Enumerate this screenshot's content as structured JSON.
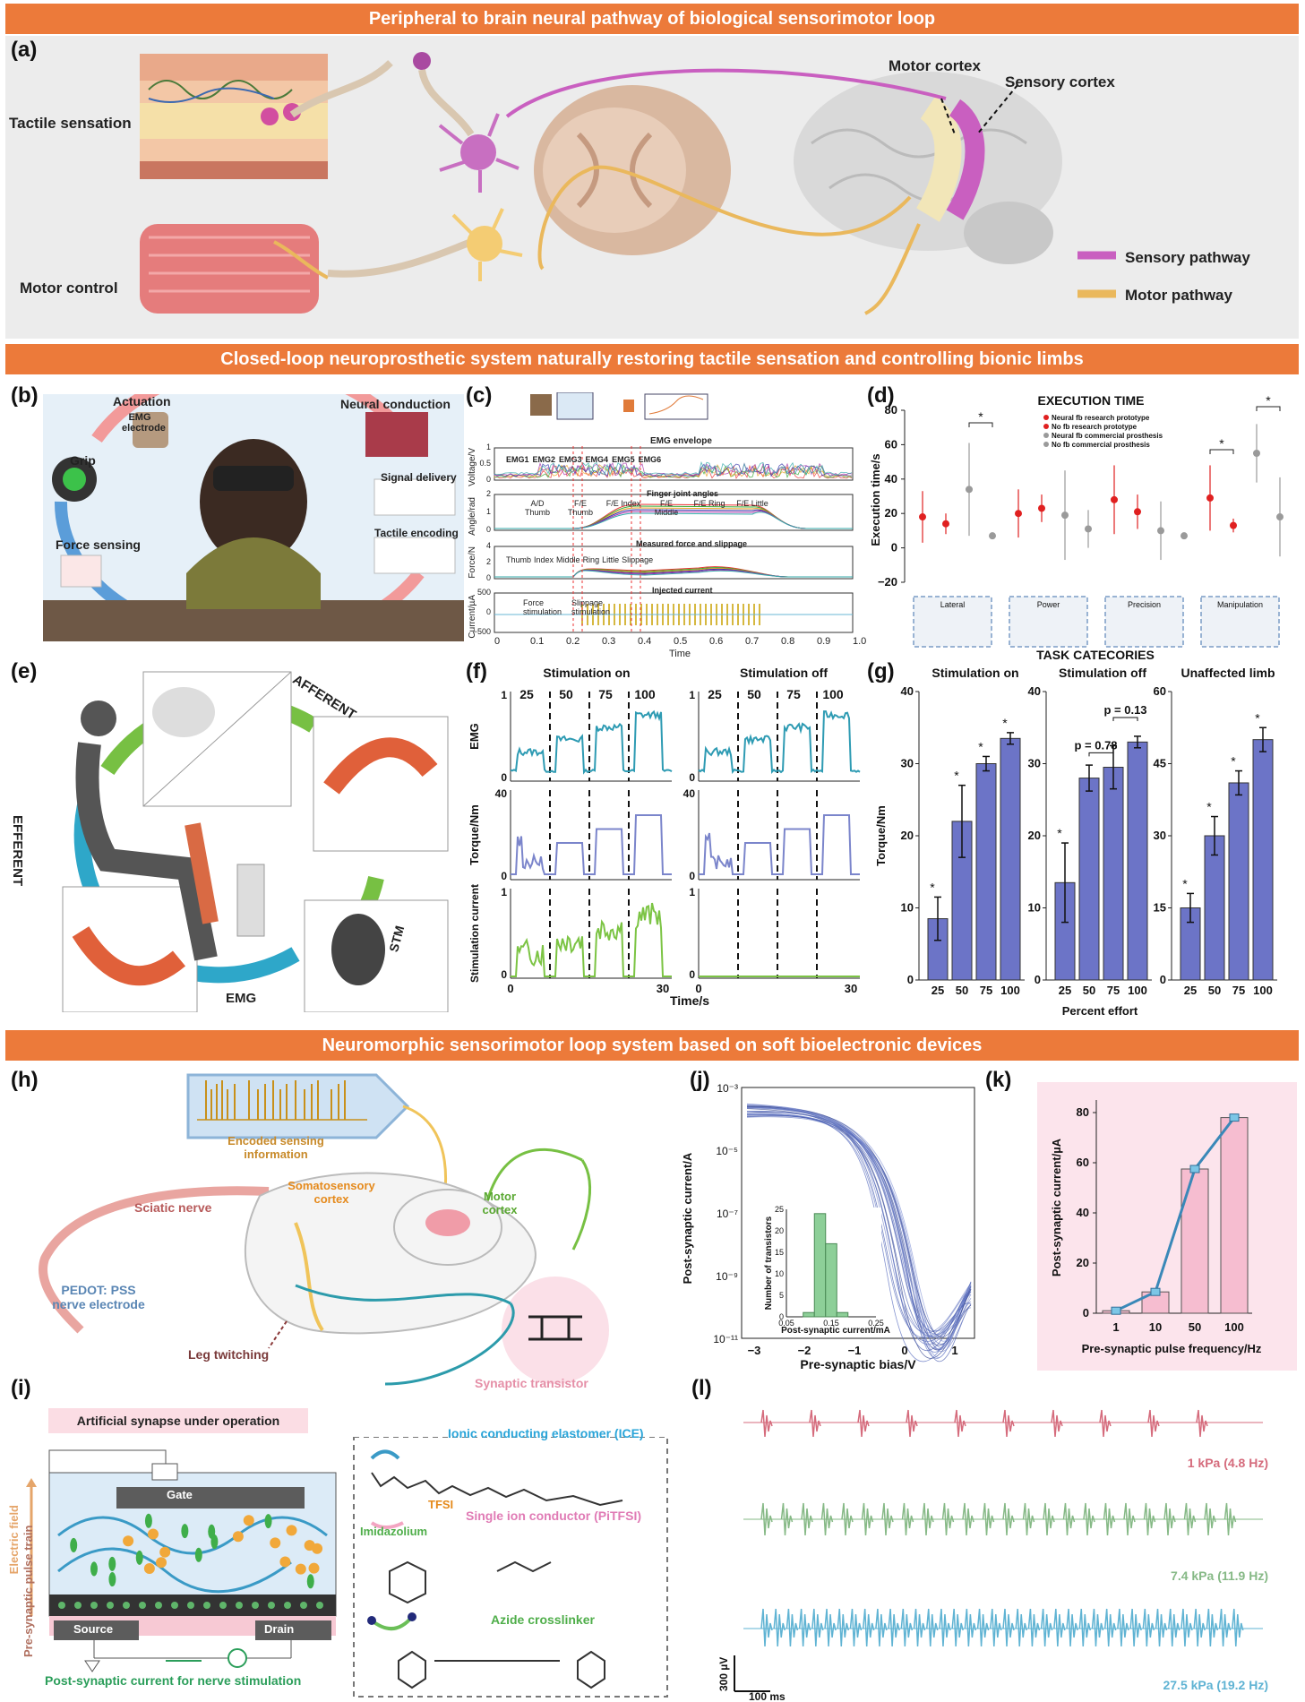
{
  "banners": {
    "top": "Peripheral to brain neural pathway of biological sensorimotor loop",
    "middle": "Closed-loop neuroprosthetic system naturally restoring tactile sensation and controlling bionic limbs",
    "bottom": "Neuromorphic sensorimotor loop system based on soft bioelectronic devices"
  },
  "panel_labels": {
    "a": "(a)",
    "b": "(b)",
    "c": "(c)",
    "d": "(d)",
    "e": "(e)",
    "f": "(f)",
    "g": "(g)",
    "h": "(h)",
    "i": "(i)",
    "j": "(j)",
    "k": "(k)",
    "l": "(l)"
  },
  "panel_a": {
    "tactile": "Tactile sensation",
    "motor_control": "Motor control",
    "motor_cortex": "Motor cortex",
    "sensory_cortex": "Sensory cortex",
    "legend_sensory": "Sensory pathway",
    "legend_motor": "Motor pathway",
    "colors": {
      "sensory": "#c95fc0",
      "motor": "#eab85c"
    }
  },
  "panel_b": {
    "actuation": "Actuation",
    "emg_electrode": "EMG electrode",
    "grip": "Grip",
    "force_sensing": "Force sensing",
    "neural_conduction": "Neural conduction",
    "signal_delivery": "Signal delivery",
    "tactile_encoding": "Tactile encoding"
  },
  "panel_c": {
    "emg_envelope": "EMG envelope",
    "ylabels": [
      "Voltage/V",
      "Angle/rad",
      "Force/N",
      "Current/µA"
    ],
    "emg_channels": [
      "EMG1",
      "EMG2",
      "EMG3",
      "EMG4",
      "EMG5",
      "EMG6"
    ],
    "finger_joint": "Finger joint angles",
    "angle_legend": [
      "A/D Thumb",
      "F/E Thumb",
      "F/E Index",
      "F/E Middle",
      "F/E Ring",
      "F/E Little"
    ],
    "measured": "Measured force and slippage",
    "force_legend": [
      "Thumb",
      "Index",
      "Middle",
      "Ring",
      "Little",
      "Slippage"
    ],
    "injected": "Injected current",
    "force_stim": "Force stimulation",
    "slip_stim": "Slippage stimulation",
    "xlabel": "Time",
    "xticks": [
      "0",
      "0.1",
      "0.2",
      "0.3",
      "0.4",
      "0.5",
      "0.6",
      "0.7",
      "0.8",
      "0.9",
      "1.0"
    ],
    "yticks_voltage": [
      "0",
      "0.5",
      "1"
    ],
    "yticks_angle": [
      "0",
      "1",
      "2"
    ],
    "yticks_force": [
      "0",
      "2",
      "4"
    ],
    "yticks_current": [
      "−500",
      "0",
      "500"
    ]
  },
  "chart_data": [
    {
      "id": "d",
      "type": "scatter",
      "title": "EXECUTION TIME",
      "ylabel": "Execution time/s",
      "xlabel": "TASK CATECORIES",
      "ylim": [
        -20,
        80
      ],
      "yticks": [
        -20,
        0,
        20,
        40,
        60,
        80
      ],
      "categories": [
        "Lateral",
        "Power",
        "Precision",
        "Manipulation"
      ],
      "series": [
        {
          "name": "Neural fb research prototype",
          "color": "#e02020",
          "values": [
            18,
            20,
            28,
            29
          ],
          "err": [
            15,
            14,
            20,
            19
          ]
        },
        {
          "name": "No fb research prototype",
          "color": "#e02020",
          "values": [
            14,
            23,
            21,
            13
          ],
          "err": [
            6,
            8,
            10,
            4
          ]
        },
        {
          "name": "Neural fb commercial prosthesis",
          "color": "#9a9a9a",
          "values": [
            34,
            19,
            10,
            55
          ],
          "err": [
            27,
            26,
            17,
            17
          ]
        },
        {
          "name": "No fb commercial prosthesis",
          "color": "#9a9a9a",
          "values": [
            7,
            11,
            7,
            18
          ],
          "err": [
            2,
            11,
            2,
            23
          ]
        }
      ],
      "significance": "*"
    },
    {
      "id": "g",
      "type": "bar",
      "xlabel": "Percent effort",
      "ylabel": "Torque/Nm",
      "categories": [
        "25",
        "50",
        "75",
        "100"
      ],
      "subplots": [
        {
          "title": "Stimulation on",
          "ylim": [
            0,
            40
          ],
          "yticks": [
            0,
            10,
            20,
            30,
            40
          ],
          "values": [
            8.5,
            22,
            30,
            33.5
          ],
          "err": [
            3,
            5,
            1,
            0.8
          ]
        },
        {
          "title": "Stimulation off",
          "ylim": [
            0,
            40
          ],
          "yticks": [
            0,
            10,
            20,
            30,
            40
          ],
          "values": [
            13.5,
            28,
            29.5,
            33
          ],
          "err": [
            5.5,
            1.8,
            3,
            0.8
          ],
          "annotations": [
            "p = 0.78",
            "p = 0.13"
          ]
        },
        {
          "title": "Unaffected limb",
          "ylim": [
            0,
            60
          ],
          "yticks": [
            0,
            15,
            30,
            45,
            60
          ],
          "values": [
            15,
            30,
            41,
            50
          ],
          "err": [
            3,
            4,
            2.5,
            2.5
          ]
        }
      ],
      "bar_color": "#6c74c7",
      "significance": "*"
    },
    {
      "id": "k",
      "type": "bar",
      "xlabel": "Pre-synaptic pulse frequency/Hz",
      "ylabel": "Post-synaptic current/µA",
      "categories": [
        "1",
        "10",
        "50",
        "100"
      ],
      "values": [
        1,
        8.5,
        57.5,
        78
      ],
      "ylim": [
        0,
        85
      ],
      "yticks": [
        0,
        20,
        40,
        60,
        80
      ]
    },
    {
      "id": "j_inset",
      "type": "bar",
      "xlabel": "Post-synaptic current/mA",
      "ylabel": "Number of transistors",
      "x": [
        0.1,
        0.125,
        0.15,
        0.175
      ],
      "values": [
        1,
        24,
        17,
        1
      ],
      "xlim": [
        0.05,
        0.25
      ],
      "xticks": [
        0.05,
        0.15,
        0.25
      ],
      "ylim": [
        0,
        25
      ],
      "yticks": [
        0,
        5,
        10,
        15,
        20,
        25
      ]
    }
  ],
  "panel_e": {
    "afferent": "AFFERENT",
    "efferent": "EFFERENT",
    "emg": "EMG",
    "stm": "STM"
  },
  "panel_f": {
    "titles": [
      "Stimulation on",
      "Stimulation off"
    ],
    "levels": [
      "25",
      "50",
      "75",
      "100"
    ],
    "ylabels": [
      "EMG",
      "Torque/Nm",
      "Stimulation current"
    ],
    "xlabel": "Time/s",
    "xticks": [
      "0",
      "30"
    ],
    "emg_ticks": [
      "0",
      "1"
    ],
    "torque_ticks": [
      "0",
      "40"
    ],
    "stim_ticks": [
      "0",
      "1"
    ]
  },
  "panel_h": {
    "encoded": "Encoded sensing information",
    "somato": "Somatosensory cortex",
    "motor_cortex": "Motor cortex",
    "sciatic": "Sciatic nerve",
    "pedot": "PEDOT: PSS nerve electrode",
    "leg": "Leg twitching",
    "synaptic": "Synaptic transistor"
  },
  "panel_i": {
    "title": "Artificial synapse under operation",
    "gate": "Gate",
    "source": "Source",
    "drain": "Drain",
    "presyn": "Pre-synaptic pulse train",
    "field": "Electric field",
    "postsyn": "Post-synaptic current for nerve stimulation",
    "ice": "Ionic conducting elastomer (ICE)",
    "tfsi": "TFSI",
    "single_ion": "Single ion conductor (PiTFSI)",
    "imid": "Imidazolium",
    "azide": "Azide crosslinker"
  },
  "panel_j": {
    "ylabel": "Post-synaptic current/A",
    "xlabel": "Pre-synaptic bias/V",
    "yticks": [
      "10⁻³",
      "10⁻⁵",
      "10⁻⁷",
      "10⁻⁹",
      "10⁻¹¹"
    ],
    "xticks": [
      "−3",
      "−2",
      "−1",
      "0",
      "1"
    ]
  },
  "panel_l": {
    "labels": [
      "1 kPa (4.8 Hz)",
      "7.4 kPa (11.9 Hz)",
      "27.5 kPa (19.2 Hz)"
    ],
    "colors": [
      "#d56b7c",
      "#86b986",
      "#5fb3d3"
    ],
    "frequencies_hz": [
      4.8,
      11.9,
      19.2
    ],
    "scale_v": "300 µV",
    "scale_t": "100 ms"
  }
}
